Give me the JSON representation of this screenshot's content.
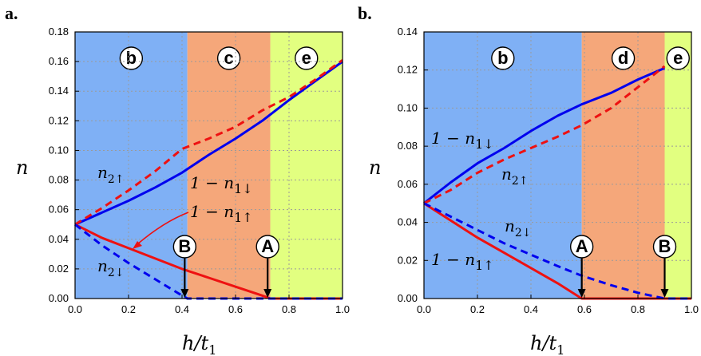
{
  "chart_data": [
    {
      "type": "line",
      "panel_label": "a.",
      "xlabel": "h/t",
      "xlabel_sub": "1",
      "ylabel": "n",
      "xlim": [
        0,
        1
      ],
      "ylim": [
        0,
        0.18
      ],
      "xticks": [
        "0.0",
        "0.2",
        "0.4",
        "0.6",
        "0.8",
        "1.0"
      ],
      "yticks": [
        "0.00",
        "0.02",
        "0.04",
        "0.06",
        "0.08",
        "0.10",
        "0.12",
        "0.14",
        "0.16",
        "0.18"
      ],
      "grid": true,
      "regions": [
        {
          "label": "b",
          "x0": 0.0,
          "x1": 0.42,
          "color": "#7fb0f5"
        },
        {
          "label": "c",
          "x0": 0.42,
          "x1": 0.73,
          "color": "#f5a77a"
        },
        {
          "label": "e",
          "x0": 0.73,
          "x1": 1.0,
          "color": "#e2ff80"
        }
      ],
      "series": [
        {
          "name": "1 − n1↓",
          "color": "#0000ee",
          "dash": false,
          "x": [
            0,
            0.1,
            0.2,
            0.3,
            0.4,
            0.5,
            0.6,
            0.7,
            0.8,
            0.9,
            1.0
          ],
          "y": [
            0.05,
            0.058,
            0.066,
            0.075,
            0.085,
            0.097,
            0.108,
            0.12,
            0.134,
            0.147,
            0.16
          ]
        },
        {
          "name": "n2↑",
          "color": "#ee1111",
          "dash": true,
          "x": [
            0,
            0.1,
            0.2,
            0.3,
            0.4,
            0.5,
            0.6,
            0.7,
            0.8,
            0.9,
            1.0
          ],
          "y": [
            0.05,
            0.061,
            0.073,
            0.086,
            0.101,
            0.108,
            0.116,
            0.127,
            0.136,
            0.148,
            0.161
          ]
        },
        {
          "name": "1 − n1↑",
          "color": "#ee1111",
          "dash": false,
          "x": [
            0,
            0.1,
            0.2,
            0.3,
            0.4,
            0.5,
            0.6,
            0.7,
            0.73,
            1.0
          ],
          "y": [
            0.05,
            0.041,
            0.034,
            0.027,
            0.02,
            0.014,
            0.008,
            0.002,
            0.0,
            0.0
          ]
        },
        {
          "name": "n2↓",
          "color": "#0000ee",
          "dash": true,
          "x": [
            0,
            0.1,
            0.2,
            0.3,
            0.4,
            0.42,
            1.0
          ],
          "y": [
            0.05,
            0.036,
            0.024,
            0.013,
            0.002,
            0.0,
            0.0
          ]
        }
      ],
      "markers": [
        {
          "label": "B",
          "x": 0.41
        },
        {
          "label": "A",
          "x": 0.72
        }
      ]
    },
    {
      "type": "line",
      "panel_label": "b.",
      "xlabel": "h/t",
      "xlabel_sub": "1",
      "ylabel": "n",
      "xlim": [
        0,
        1
      ],
      "ylim": [
        0,
        0.14
      ],
      "xticks": [
        "0.0",
        "0.2",
        "0.4",
        "0.6",
        "0.8",
        "1.0"
      ],
      "yticks": [
        "0.00",
        "0.02",
        "0.04",
        "0.06",
        "0.08",
        "0.10",
        "0.12",
        "0.14"
      ],
      "grid": true,
      "regions": [
        {
          "label": "b",
          "x0": 0.0,
          "x1": 0.59,
          "color": "#7fb0f5"
        },
        {
          "label": "d",
          "x0": 0.59,
          "x1": 0.9,
          "color": "#f5a77a"
        },
        {
          "label": "e",
          "x0": 0.9,
          "x1": 1.0,
          "color": "#e2ff80"
        }
      ],
      "series": [
        {
          "name": "1 − n1↓",
          "color": "#0000ee",
          "dash": false,
          "x": [
            0,
            0.1,
            0.2,
            0.3,
            0.4,
            0.5,
            0.59,
            0.7,
            0.8,
            0.9
          ],
          "y": [
            0.05,
            0.061,
            0.071,
            0.079,
            0.088,
            0.096,
            0.102,
            0.108,
            0.115,
            0.121
          ]
        },
        {
          "name": "n2↑",
          "color": "#ee1111",
          "dash": true,
          "x": [
            0,
            0.1,
            0.2,
            0.3,
            0.4,
            0.5,
            0.59,
            0.7,
            0.8,
            0.9
          ],
          "y": [
            0.05,
            0.057,
            0.066,
            0.073,
            0.079,
            0.085,
            0.091,
            0.1,
            0.111,
            0.122
          ]
        },
        {
          "name": "1 − n1↑",
          "color": "#ee1111",
          "dash": false,
          "x": [
            0,
            0.1,
            0.2,
            0.3,
            0.4,
            0.5,
            0.59,
            1.0
          ],
          "y": [
            0.05,
            0.041,
            0.032,
            0.024,
            0.016,
            0.008,
            0.0,
            0.0
          ]
        },
        {
          "name": "n2↓",
          "color": "#0000ee",
          "dash": true,
          "x": [
            0,
            0.1,
            0.2,
            0.3,
            0.4,
            0.5,
            0.59,
            0.7,
            0.8,
            0.9,
            1.0
          ],
          "y": [
            0.05,
            0.043,
            0.036,
            0.029,
            0.023,
            0.017,
            0.012,
            0.007,
            0.003,
            0.0,
            0.0
          ]
        }
      ],
      "markers": [
        {
          "label": "A",
          "x": 0.59
        },
        {
          "label": "B",
          "x": 0.9
        }
      ]
    }
  ],
  "labels_a": {
    "n2up": {
      "base": "n",
      "sub": "2↑"
    },
    "one_minus_n1down": {
      "text": "1 − n",
      "sub": "1↓"
    },
    "one_minus_n1up": {
      "text": "1 − n",
      "sub": "1↑"
    },
    "n2down": {
      "base": "n",
      "sub": "2↓"
    }
  },
  "labels_b": {
    "one_minus_n1down": {
      "text": "1 − n",
      "sub": "1↓"
    },
    "n2up": {
      "base": "n",
      "sub": "2↑"
    },
    "n2down": {
      "base": "n",
      "sub": "2↓"
    },
    "one_minus_n1up": {
      "text": "1 − n",
      "sub": "1↑"
    }
  }
}
